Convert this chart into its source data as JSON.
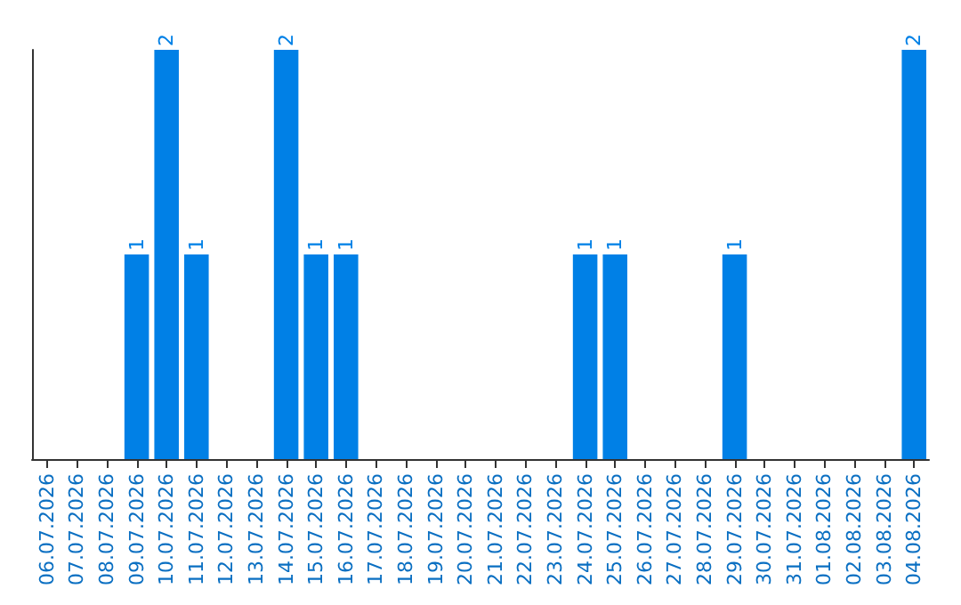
{
  "chart_data": {
    "type": "bar",
    "categories": [
      "06.07.2026",
      "07.07.2026",
      "08.07.2026",
      "09.07.2026",
      "10.07.2026",
      "11.07.2026",
      "12.07.2026",
      "13.07.2026",
      "14.07.2026",
      "15.07.2026",
      "16.07.2026",
      "17.07.2026",
      "18.07.2026",
      "19.07.2026",
      "20.07.2026",
      "21.07.2026",
      "22.07.2026",
      "23.07.2026",
      "24.07.2026",
      "25.07.2026",
      "26.07.2026",
      "27.07.2026",
      "28.07.2026",
      "29.07.2026",
      "30.07.2026",
      "31.07.2026",
      "01.08.2026",
      "02.08.2026",
      "03.08.2026",
      "04.08.2026"
    ],
    "values": [
      0,
      0,
      0,
      1,
      2,
      1,
      0,
      0,
      2,
      1,
      1,
      0,
      0,
      0,
      0,
      0,
      0,
      0,
      1,
      1,
      0,
      0,
      0,
      1,
      0,
      0,
      0,
      0,
      0,
      2
    ],
    "value_labels": [
      null,
      null,
      null,
      "1",
      "2",
      "1",
      null,
      null,
      "2",
      "1",
      "1",
      null,
      null,
      null,
      null,
      null,
      null,
      null,
      "1",
      "1",
      null,
      null,
      null,
      "1",
      null,
      null,
      null,
      null,
      null,
      "2"
    ],
    "color": "#0080e6",
    "ylim": [
      0,
      2
    ],
    "tick_labels": "x"
  }
}
